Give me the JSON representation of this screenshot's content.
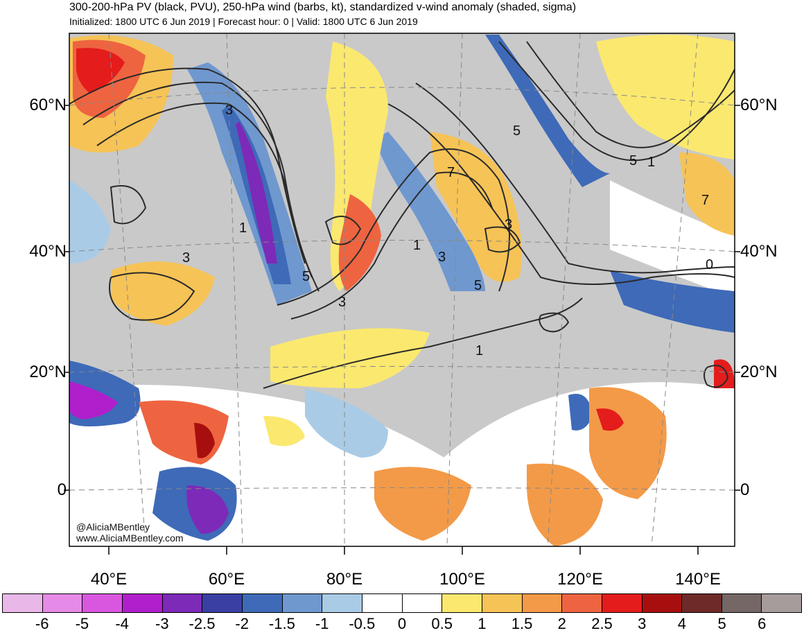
{
  "header": {
    "title": "300-200-hPa PV (black, PVU), 250-hPa wind (barbs, kt), standardized v-wind anomaly (shaded, sigma)",
    "subtitle": "Initialized: 1800 UTC 6 Jun 2019 | Forecast hour: 0 | Valid: 1800 UTC 6 Jun 2019"
  },
  "map": {
    "lat_labels": [
      "60°N",
      "40°N",
      "20°N",
      "0"
    ],
    "lon_labels": [
      "40°E",
      "60°E",
      "80°E",
      "100°E",
      "120°E",
      "140°E"
    ],
    "contour_labels": [
      "3",
      "1",
      "5",
      "3",
      "1",
      "3",
      "5",
      "5",
      "7",
      "3",
      "1",
      "5",
      "7",
      "3",
      "0",
      "1"
    ],
    "credit_handle": "@AliciaMBentley",
    "credit_url": "www.AliciaMBentley.com"
  },
  "colorbar": {
    "colors": [
      "#e9b8e9",
      "#e58ae6",
      "#d957df",
      "#b01fcc",
      "#7d2ab8",
      "#3a3fa4",
      "#3e6ab8",
      "#6f98cf",
      "#a9cbe6",
      "#ffffff",
      "#ffffff",
      "#fbe86f",
      "#f6c356",
      "#f39a48",
      "#ee6440",
      "#e41c1c",
      "#a70f0f",
      "#6e2a29",
      "#746766",
      "#a69c9b"
    ],
    "labels": [
      "-6",
      "-5",
      "-4",
      "-3",
      "-2.5",
      "-2",
      "-1.5",
      "-1",
      "-0.5",
      "0",
      "0.5",
      "1",
      "1.5",
      "2",
      "2.5",
      "3",
      "4",
      "5",
      "6"
    ]
  }
}
